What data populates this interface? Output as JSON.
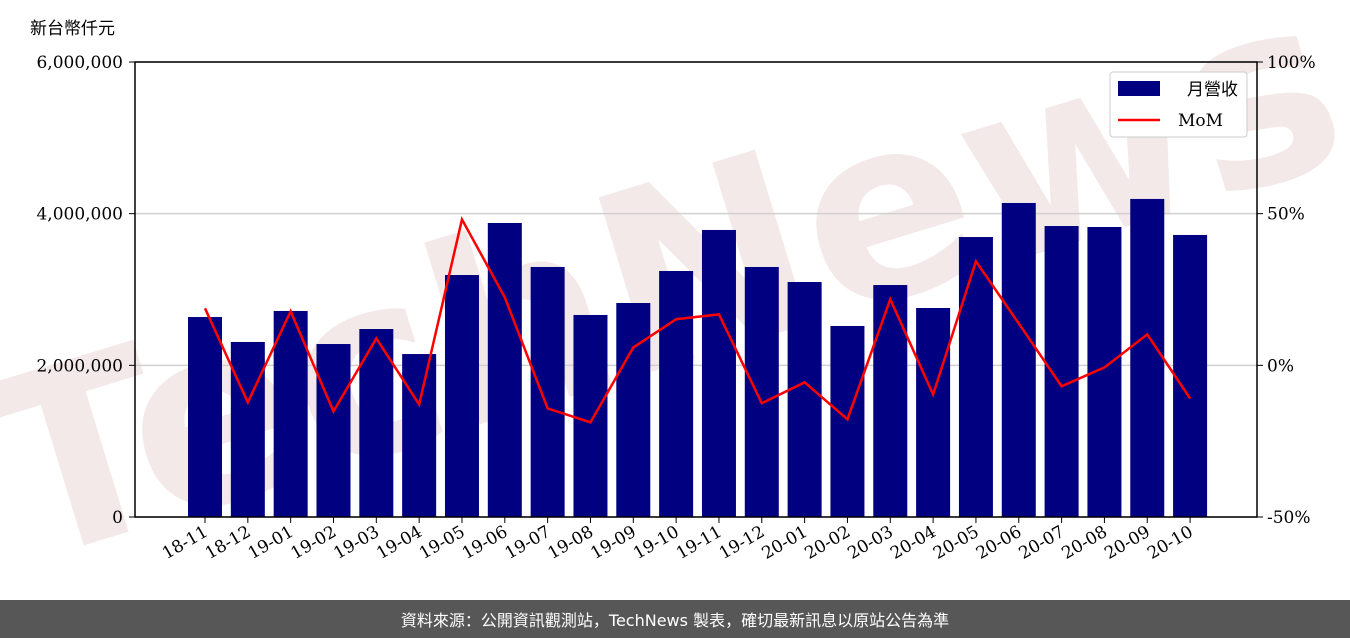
{
  "chart_data": {
    "type": "bar_line",
    "y_label": "新台幣仟元",
    "watermark": "TechNews",
    "footer": "資料來源：公開資訊觀測站，TechNews 製表，確切最新訊息以原站公告為準",
    "categories": [
      "18-11",
      "18-12",
      "19-01",
      "19-02",
      "19-03",
      "19-04",
      "19-05",
      "19-06",
      "19-07",
      "19-08",
      "19-09",
      "19-10",
      "19-11",
      "19-12",
      "20-01",
      "20-02",
      "20-03",
      "20-04",
      "20-05",
      "20-06",
      "20-07",
      "20-08",
      "20-09",
      "20-10"
    ],
    "series": [
      {
        "name": "月營收",
        "color": "#000080",
        "axis": "y",
        "values": [
          2637000,
          2308000,
          2717000,
          2281000,
          2479000,
          2149000,
          3191000,
          3877000,
          3297000,
          2664000,
          2822000,
          3244000,
          3785000,
          3297000,
          3099000,
          2519000,
          3059000,
          2756000,
          3692000,
          4141000,
          3837000,
          3824000,
          4194000,
          3719000
        ]
      },
      {
        "name": "MoM",
        "color": "#ff0000",
        "axis": "y2",
        "values": [
          18.8,
          -12.2,
          17.8,
          -15.2,
          8.9,
          -12.9,
          48.1,
          22.4,
          -14.2,
          -18.8,
          5.9,
          15.2,
          16.8,
          -12.5,
          -5.6,
          -17.8,
          21.8,
          -9.6,
          34.3,
          13.8,
          -6.9,
          -0.7,
          10.2,
          -10.9
        ]
      }
    ],
    "ylim": [
      0,
      6000000
    ],
    "yticks": [
      0,
      {
        "value": 2000000,
        "label": "2,000,000"
      },
      {
        "value": 4000000,
        "label": "4,000,000"
      },
      {
        "value": 6000000,
        "label": "6,000,000"
      }
    ],
    "y2lim": [
      -50,
      100
    ],
    "y2ticks": [
      {
        "value": -50,
        "label": "-50%"
      },
      {
        "value": 0,
        "label": "0%"
      },
      {
        "value": 50,
        "label": "50%"
      },
      {
        "value": 100,
        "label": "100%"
      }
    ],
    "grid": true,
    "legend": "upper right"
  }
}
